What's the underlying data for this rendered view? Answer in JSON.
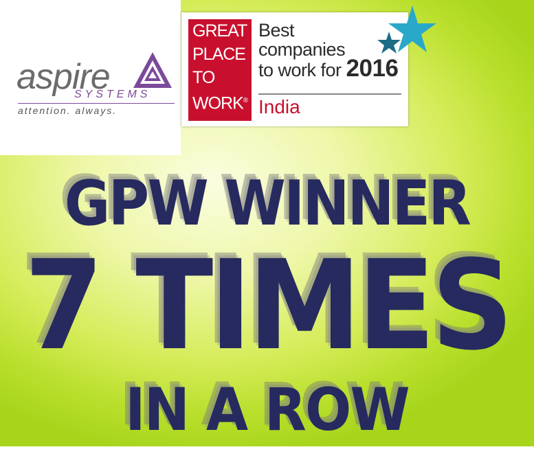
{
  "logo": {
    "wordmark": "aspire",
    "subtitle": "SYSTEMS",
    "tagline": "attention. always.",
    "icon": "aspire-mountain-icon",
    "color": "#7c4a9a"
  },
  "badge": {
    "org_lines": [
      "GREAT",
      "PLACE",
      "TO",
      "WORK"
    ],
    "registered": "®",
    "text_lines": [
      "Best",
      "companies"
    ],
    "line3_prefix": "to work for ",
    "year": "2016",
    "country": "India",
    "icon": "stars-icon",
    "accent": "#c8102e"
  },
  "headline": {
    "line1": "GPW WINNER",
    "line2": "7 TIMES",
    "line3": "IN A ROW",
    "color": "#262a5f"
  }
}
